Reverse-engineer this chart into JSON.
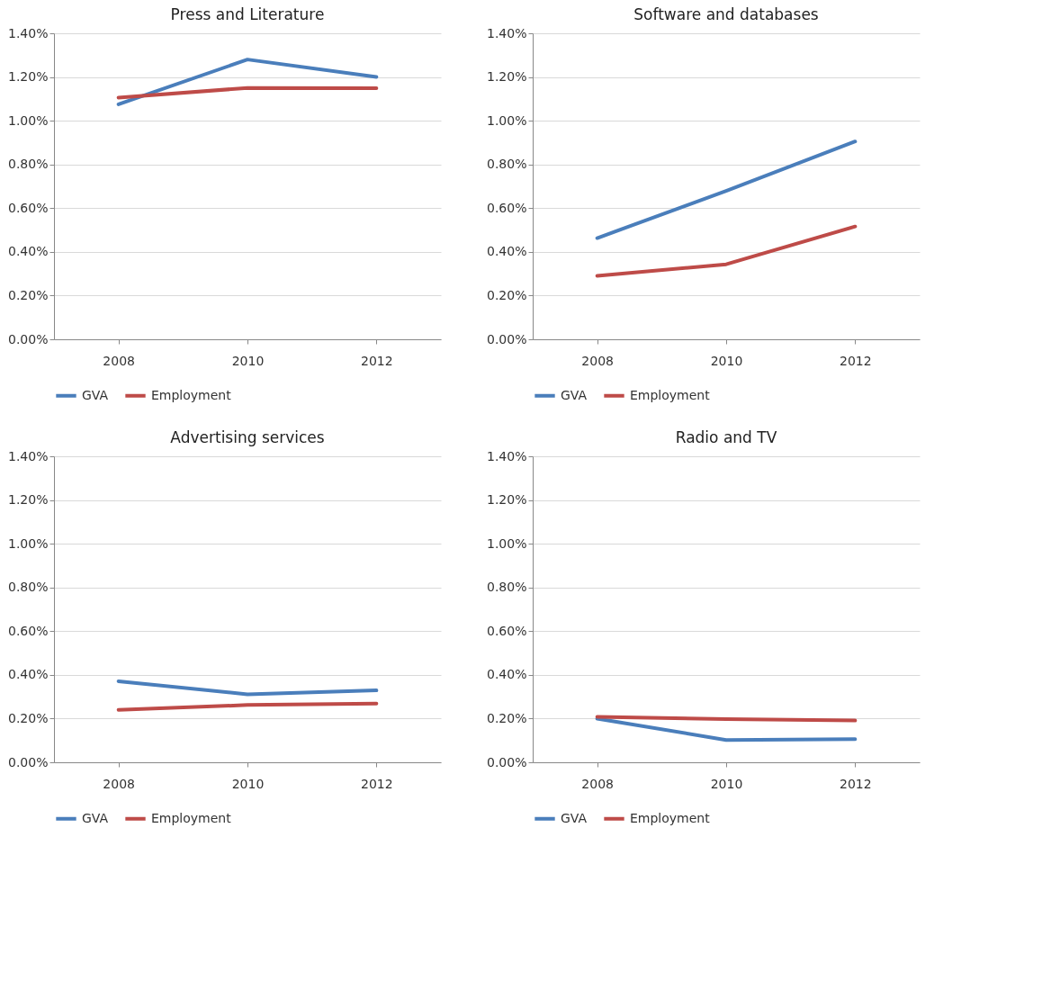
{
  "chart_data": [
    {
      "type": "line",
      "title": "Press and Literature",
      "categories": [
        "2008",
        "2010",
        "2012"
      ],
      "ylim": [
        0,
        1.4
      ],
      "yticks": [
        {
          "value": 0,
          "label": "0.00%"
        },
        {
          "value": 0.2,
          "label": "0.20%"
        },
        {
          "value": 0.4,
          "label": "0.40%"
        },
        {
          "value": 0.6,
          "label": "0.60%"
        },
        {
          "value": 0.8,
          "label": "0.80%"
        },
        {
          "value": 1.0,
          "label": "1.00%"
        },
        {
          "value": 1.2,
          "label": "1.20%"
        },
        {
          "value": 1.4,
          "label": "1.40%"
        }
      ],
      "grid": "y",
      "legend": "bottom",
      "series": [
        {
          "name": "GVA",
          "color": "#4a7ebb",
          "values": [
            1.075,
            1.28,
            1.2
          ]
        },
        {
          "name": "Employment",
          "color": "#be4b48",
          "values": [
            1.106,
            1.15,
            1.149
          ]
        }
      ]
    },
    {
      "type": "line",
      "title": "Software and databases",
      "categories": [
        "2008",
        "2010",
        "2012"
      ],
      "ylim": [
        0,
        1.4
      ],
      "yticks": [
        {
          "value": 0,
          "label": "0.00%"
        },
        {
          "value": 0.2,
          "label": "0.20%"
        },
        {
          "value": 0.4,
          "label": "0.40%"
        },
        {
          "value": 0.6,
          "label": "0.60%"
        },
        {
          "value": 0.8,
          "label": "0.80%"
        },
        {
          "value": 1.0,
          "label": "1.00%"
        },
        {
          "value": 1.2,
          "label": "1.20%"
        },
        {
          "value": 1.4,
          "label": "1.40%"
        }
      ],
      "grid": "y",
      "legend": "bottom",
      "series": [
        {
          "name": "GVA",
          "color": "#4a7ebb",
          "values": [
            0.463,
            0.679,
            0.905
          ]
        },
        {
          "name": "Employment",
          "color": "#be4b48",
          "values": [
            0.29,
            0.343,
            0.516
          ]
        }
      ]
    },
    {
      "type": "line",
      "title": "Advertising services",
      "categories": [
        "2008",
        "2010",
        "2012"
      ],
      "ylim": [
        0,
        1.4
      ],
      "yticks": [
        {
          "value": 0,
          "label": "0.00%"
        },
        {
          "value": 0.2,
          "label": "0.20%"
        },
        {
          "value": 0.4,
          "label": "0.40%"
        },
        {
          "value": 0.6,
          "label": "0.60%"
        },
        {
          "value": 0.8,
          "label": "0.80%"
        },
        {
          "value": 1.0,
          "label": "1.00%"
        },
        {
          "value": 1.2,
          "label": "1.20%"
        },
        {
          "value": 1.4,
          "label": "1.40%"
        }
      ],
      "grid": "y",
      "legend": "bottom",
      "series": [
        {
          "name": "GVA",
          "color": "#4a7ebb",
          "values": [
            0.371,
            0.311,
            0.329
          ]
        },
        {
          "name": "Employment",
          "color": "#be4b48",
          "values": [
            0.24,
            0.262,
            0.269
          ]
        }
      ]
    },
    {
      "type": "line",
      "title": "Radio and TV",
      "categories": [
        "2008",
        "2010",
        "2012"
      ],
      "ylim": [
        0,
        1.4
      ],
      "yticks": [
        {
          "value": 0,
          "label": "0.00%"
        },
        {
          "value": 0.2,
          "label": "0.20%"
        },
        {
          "value": 0.4,
          "label": "0.40%"
        },
        {
          "value": 0.6,
          "label": "0.60%"
        },
        {
          "value": 0.8,
          "label": "0.80%"
        },
        {
          "value": 1.0,
          "label": "1.00%"
        },
        {
          "value": 1.2,
          "label": "1.20%"
        },
        {
          "value": 1.4,
          "label": "1.40%"
        }
      ],
      "grid": "y",
      "legend": "bottom",
      "series": [
        {
          "name": "GVA",
          "color": "#4a7ebb",
          "values": [
            0.2,
            0.102,
            0.106
          ]
        },
        {
          "name": "Employment",
          "color": "#be4b48",
          "values": [
            0.208,
            0.198,
            0.191
          ]
        }
      ]
    }
  ]
}
